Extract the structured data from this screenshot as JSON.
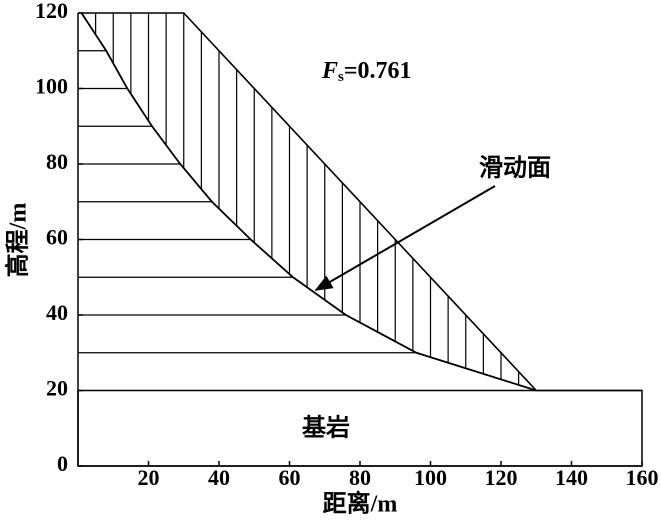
{
  "chart_data": {
    "type": "slope",
    "xlabel": "距离/m",
    "ylabel": "高程/m",
    "xlim": [
      0,
      160
    ],
    "ylim": [
      0,
      120
    ],
    "xticks": [
      20,
      40,
      60,
      80,
      100,
      120,
      140,
      160
    ],
    "yticks": [
      0,
      20,
      40,
      60,
      80,
      100,
      120
    ],
    "ground_surface": {
      "x": [
        0,
        30,
        130,
        160
      ],
      "y": [
        120,
        120,
        20,
        20
      ]
    },
    "slip_surface": {
      "name": "滑动面",
      "x": [
        1,
        8,
        14,
        21,
        29,
        38,
        49,
        61,
        76,
        96,
        130
      ],
      "y": [
        120,
        110,
        100,
        90,
        80,
        70,
        60,
        50,
        40,
        30,
        20
      ]
    },
    "bedrock": {
      "name": "基岩",
      "top": 20
    },
    "safety_factor": {
      "symbol": "F",
      "subscript": "s",
      "text": "=0.761"
    }
  }
}
